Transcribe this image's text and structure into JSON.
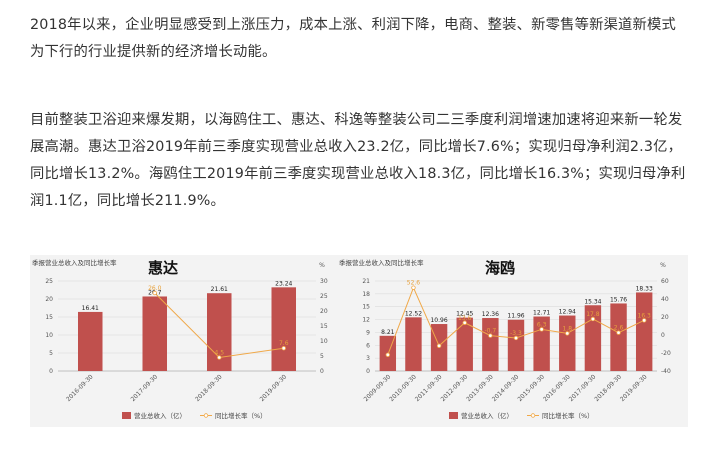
{
  "article": {
    "paragraph1": "2018年以来，企业明显感受到上涨压力，成本上涨、利润下降，电商、整装、新零售等新渠道新模式为下行的行业提供新的经济增长动能。",
    "paragraph2": "目前整装卫浴迎来爆发期，以海鸥住工、惠达、科逸等整装公司二三季度利润增速加速将迎来新一轮发展高潮。惠达卫浴2019年前三季度实现营业总收入23.2亿，同比增长7.6%；实现归母净利润2.3亿，同比增长13.2%。海鸥住工2019年前三季度实现营业总收入18.3亿，同比增长16.3%；实现归母净利润1.1亿，同比增长211.9%。"
  },
  "colors": {
    "bar": "#c0504d",
    "line": "#f0a848",
    "text": "#333333"
  },
  "chart_data": [
    {
      "type": "bar",
      "subtitle": "季报营业总收入及同比增长率",
      "name": "惠达",
      "categories": [
        "2016-09-30",
        "2017-09-30",
        "2018-09-30",
        "2019-09-30"
      ],
      "series": [
        {
          "name": "营业总收入（亿）",
          "type": "bar",
          "axis": "left",
          "values": [
            16.41,
            20.7,
            21.61,
            23.24
          ]
        },
        {
          "name": "同比增长率（%）",
          "type": "line",
          "axis": "right",
          "values": [
            null,
            26.0,
            4.5,
            7.6
          ]
        }
      ],
      "bar_labels": [
        "16.41",
        "20.7",
        "21.61",
        "23.24"
      ],
      "rate_labels": [
        "",
        "26.0",
        "4.5",
        "7.6"
      ],
      "y_left": {
        "min": 0,
        "max": 25,
        "ticks": [
          0,
          5,
          10,
          15,
          20,
          25
        ]
      },
      "y_right": {
        "min": 0,
        "max": 30,
        "ticks": [
          0,
          5,
          10,
          15,
          20,
          25,
          30
        ],
        "unit": "%"
      },
      "legend_position": "bottom"
    },
    {
      "type": "bar",
      "subtitle": "季报营业总收入及同比增长率",
      "name": "海鸥",
      "categories": [
        "2009-09-30",
        "2010-09-30",
        "2011-09-30",
        "2012-09-30",
        "2013-09-30",
        "2014-09-30",
        "2015-09-30",
        "2016-09-30",
        "2017-09-30",
        "2018-09-30",
        "2019-09-30"
      ],
      "series": [
        {
          "name": "营业总收入（亿）",
          "type": "bar",
          "axis": "left",
          "values": [
            8.21,
            12.52,
            10.96,
            12.45,
            12.36,
            11.96,
            12.71,
            12.94,
            15.34,
            15.76,
            18.33
          ]
        },
        {
          "name": "同比增长率（%）",
          "type": "line",
          "axis": "right",
          "values": [
            -22.0,
            52.6,
            -12.0,
            13.6,
            -0.7,
            -3.3,
            6.3,
            1.8,
            17.8,
            2.6,
            16.3
          ]
        }
      ],
      "bar_labels": [
        "8.21",
        "12.52",
        "10.96",
        "12.45",
        "12.36",
        "11.96",
        "12.71",
        "12.94",
        "15.34",
        "15.76",
        "18.33"
      ],
      "rate_labels": [
        "",
        "52.6",
        "",
        "13.6",
        "-0.7",
        "-3.3",
        "6.3",
        "1.8",
        "17.8",
        "2.6",
        "16.3"
      ],
      "y_left": {
        "min": 0,
        "max": 21,
        "ticks": [
          0,
          3,
          6,
          9,
          12,
          15,
          18,
          21
        ]
      },
      "y_right": {
        "min": -40,
        "max": 60,
        "ticks": [
          -40,
          -20,
          0,
          20,
          40,
          60
        ],
        "unit": "%"
      },
      "legend_position": "bottom"
    }
  ]
}
